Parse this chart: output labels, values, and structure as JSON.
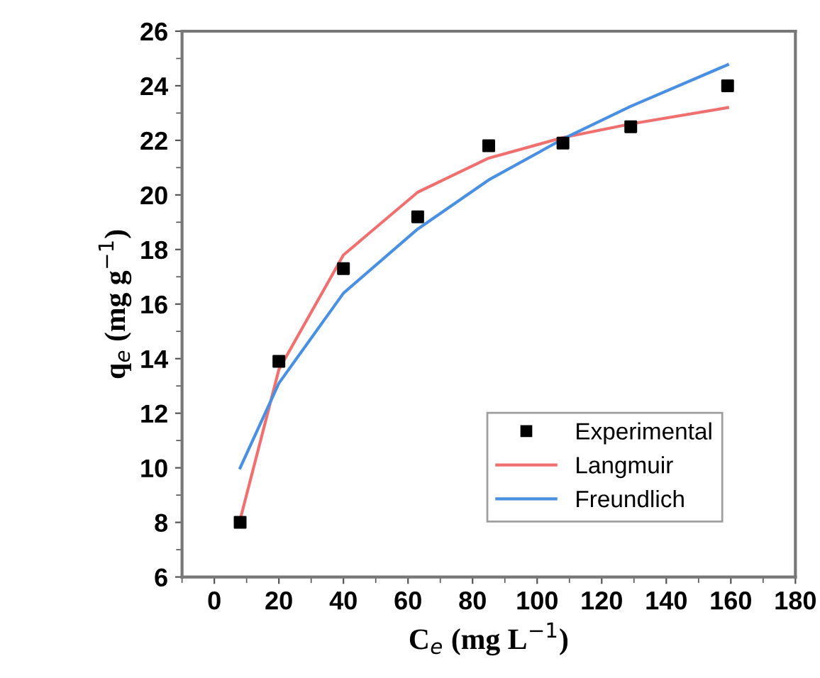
{
  "chart_data": {
    "type": "line",
    "xlabel": "C$_{e}$ (mg L$^{−1}$)",
    "ylabel": "q$_{e}$ (mg g$^{−1}$)",
    "x": [
      8,
      20,
      40,
      63,
      85,
      108,
      129,
      159
    ],
    "series": [
      {
        "name": "Experimental",
        "type": "scatter",
        "marker": "square",
        "color": "#000000",
        "values": [
          8.0,
          13.9,
          17.3,
          19.2,
          21.8,
          21.9,
          22.5,
          24.0
        ]
      },
      {
        "name": "Langmuir",
        "color": "#f07070",
        "values": [
          8.1,
          13.6,
          17.8,
          20.1,
          21.35,
          22.1,
          22.6,
          23.2
        ]
      },
      {
        "name": "Freundlich",
        "color": "#4a90e2",
        "values": [
          10.0,
          13.1,
          16.4,
          18.75,
          20.55,
          22.05,
          23.25,
          24.77
        ]
      }
    ],
    "xlim": [
      -10,
      180
    ],
    "xticks": [
      0,
      20,
      40,
      60,
      80,
      100,
      120,
      140,
      160,
      180
    ],
    "ylim": [
      6,
      26
    ],
    "yticks": [
      6,
      8,
      10,
      12,
      14,
      16,
      18,
      20,
      22,
      24,
      26
    ],
    "legend": "bottom right",
    "grid": false
  }
}
